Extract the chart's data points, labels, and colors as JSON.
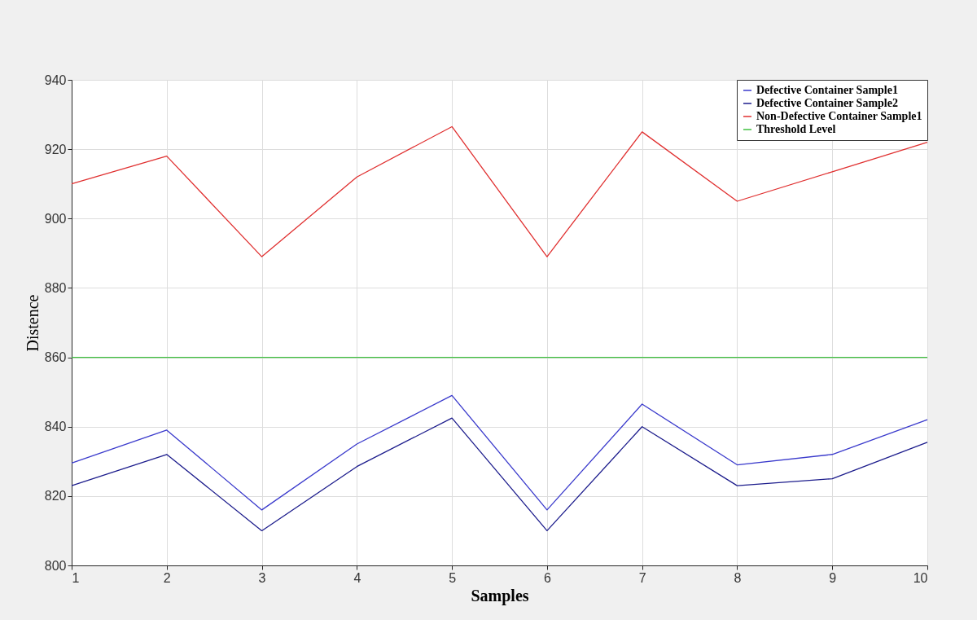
{
  "chart_data": {
    "type": "line",
    "xlabel": "Samples",
    "ylabel": "Distence",
    "x": [
      1,
      2,
      3,
      4,
      5,
      6,
      7,
      8,
      9,
      10
    ],
    "series": [
      {
        "name": "Defective Container Sample1",
        "color": "#3a3acc",
        "values": [
          829.5,
          839,
          816,
          835,
          849,
          816,
          846.5,
          829,
          832,
          842
        ]
      },
      {
        "name": "Defective Container Sample2",
        "color": "#1c1c8c",
        "values": [
          823,
          832,
          810,
          828.5,
          842.5,
          810,
          840,
          823,
          825,
          835.5
        ]
      },
      {
        "name": "Non-Defective Container Sample1",
        "color": "#e03030",
        "values": [
          910,
          918,
          889,
          912,
          926.5,
          889,
          925,
          905,
          913.5,
          922
        ]
      },
      {
        "name": "Threshold Level",
        "color": "#40c040",
        "values": [
          860,
          860,
          860,
          860,
          860,
          860,
          860,
          860,
          860,
          860
        ]
      }
    ],
    "xlim": [
      1,
      10
    ],
    "xticks": [
      1,
      2,
      3,
      4,
      5,
      6,
      7,
      8,
      9,
      10
    ],
    "ylim": [
      800,
      940
    ],
    "yticks": [
      800,
      820,
      840,
      860,
      880,
      900,
      920,
      940
    ],
    "grid": true,
    "legend": "top right",
    "marker": "none",
    "line_style": "solid"
  }
}
